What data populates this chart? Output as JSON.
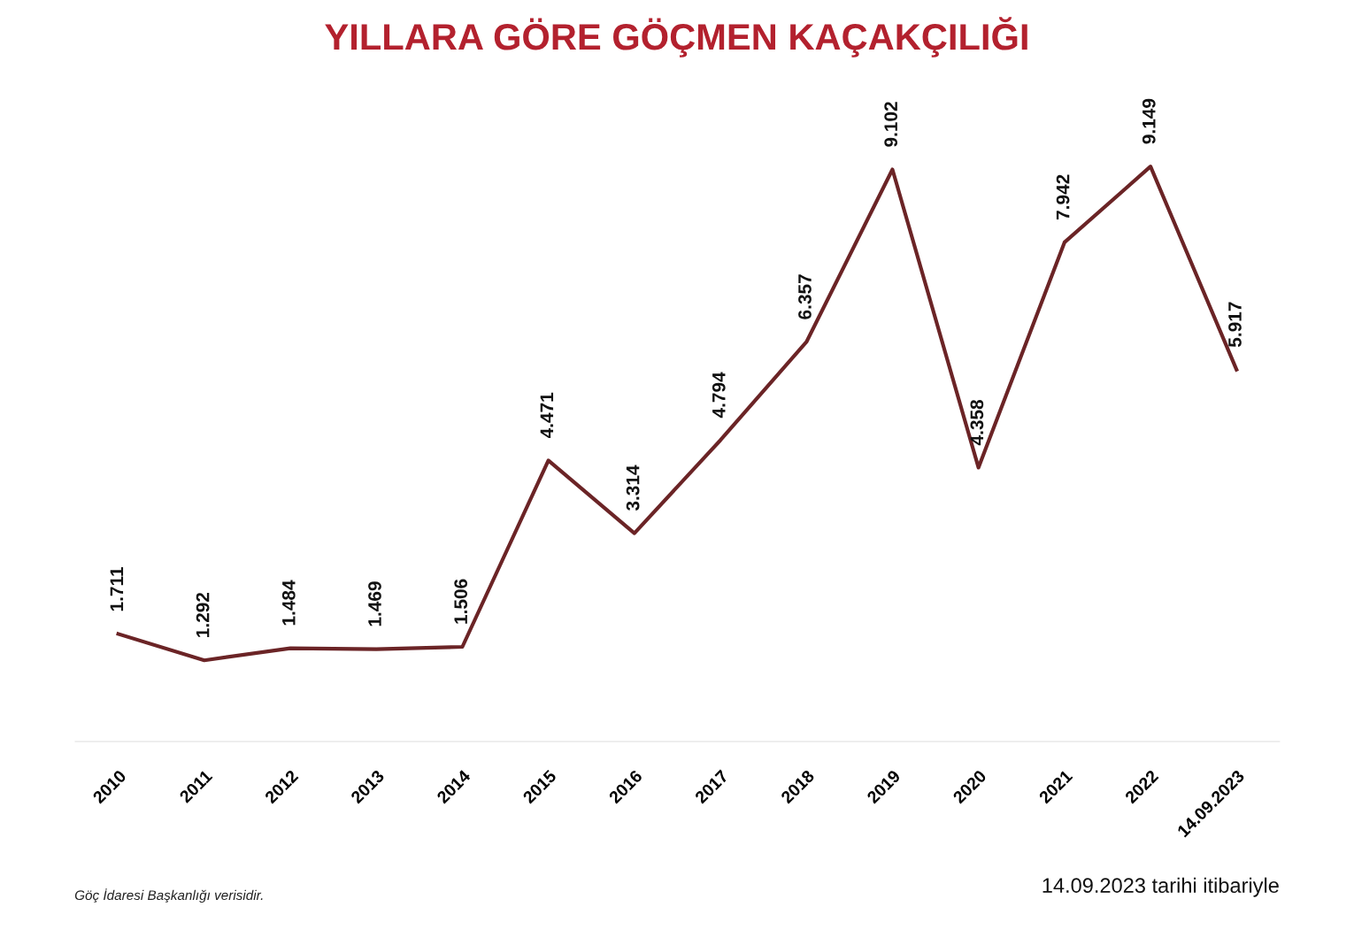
{
  "chart_data": {
    "type": "line",
    "title": "YILLARA GÖRE GÖÇMEN KAÇAKÇILIĞI",
    "categories": [
      "2010",
      "2011",
      "2012",
      "2013",
      "2014",
      "2015",
      "2016",
      "2017",
      "2018",
      "2019",
      "2020",
      "2021",
      "2022",
      "14.09.2023"
    ],
    "series": [
      {
        "color": "#6b2426",
        "values": [
          1711,
          1292,
          1484,
          1469,
          1506,
          4471,
          3314,
          4794,
          6357,
          9102,
          4358,
          7942,
          9149,
          5917
        ],
        "value_labels": [
          "1.711",
          "1.292",
          "1.484",
          "1.469",
          "1.506",
          "4.471",
          "3.314",
          "4.794",
          "6.357",
          "9.102",
          "4.358",
          "7.942",
          "9.149",
          "5.917"
        ]
      }
    ],
    "grid": false,
    "legend": false,
    "marker": "none",
    "line_style": "solid",
    "tick_labels": "x",
    "annotations": [
      "Göç İdaresi Başkanlığı verisidir.",
      "14.09.2023 tarihi itibariyle"
    ]
  }
}
